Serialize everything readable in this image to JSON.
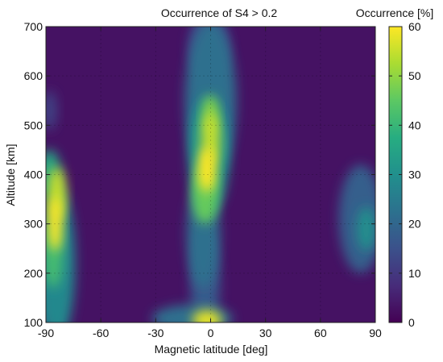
{
  "chart_data": {
    "type": "heatmap",
    "title": "Occurrence of S4 > 0.2",
    "xlabel": "Magnetic latitude [deg]",
    "ylabel": "Altitude [km]",
    "xlim": [
      -90,
      90
    ],
    "ylim": [
      100,
      700
    ],
    "xticks": [
      "-90",
      "-60",
      "-30",
      "0",
      "30",
      "60",
      "90"
    ],
    "yticks": [
      "100",
      "200",
      "300",
      "400",
      "500",
      "600",
      "700"
    ],
    "colorbar": {
      "label": "Occurrence [%]",
      "range": [
        0,
        60
      ],
      "ticks": [
        "0",
        "10",
        "20",
        "30",
        "40",
        "50",
        "60"
      ],
      "colormap": "viridis"
    },
    "grid": true,
    "features": [
      {
        "lat": -85,
        "alt": 300,
        "width_deg": 4,
        "height_km": 55,
        "value": 60
      },
      {
        "lat": -84,
        "alt": 360,
        "width_deg": 5,
        "height_km": 55,
        "value": 55
      },
      {
        "lat": -86,
        "alt": 240,
        "width_deg": 5,
        "height_km": 70,
        "value": 42
      },
      {
        "lat": -88,
        "alt": 400,
        "width_deg": 6,
        "height_km": 50,
        "value": 36
      },
      {
        "lat": -84,
        "alt": 220,
        "width_deg": 10,
        "height_km": 160,
        "value": 28
      },
      {
        "lat": -88,
        "alt": 160,
        "width_deg": 6,
        "height_km": 70,
        "value": 22
      },
      {
        "lat": -88,
        "alt": 530,
        "width_deg": 4,
        "height_km": 40,
        "value": 12
      },
      {
        "lat": -2,
        "alt": 410,
        "width_deg": 5,
        "height_km": 45,
        "value": 60
      },
      {
        "lat": 0,
        "alt": 470,
        "width_deg": 5,
        "height_km": 55,
        "value": 55
      },
      {
        "lat": 0,
        "alt": 520,
        "width_deg": 4,
        "height_km": 40,
        "value": 50
      },
      {
        "lat": -3,
        "alt": 360,
        "width_deg": 7,
        "height_km": 60,
        "value": 46
      },
      {
        "lat": -1,
        "alt": 440,
        "width_deg": 11,
        "height_km": 120,
        "value": 32
      },
      {
        "lat": 0,
        "alt": 550,
        "width_deg": 14,
        "height_km": 160,
        "value": 22
      },
      {
        "lat": -4,
        "alt": 280,
        "width_deg": 9,
        "height_km": 110,
        "value": 22
      },
      {
        "lat": -3,
        "alt": 180,
        "width_deg": 8,
        "height_km": 110,
        "value": 17
      },
      {
        "lat": -1,
        "alt": 660,
        "width_deg": 11,
        "height_km": 70,
        "value": 14
      },
      {
        "lat": -2,
        "alt": 105,
        "width_deg": 8,
        "height_km": 20,
        "value": 58
      },
      {
        "lat": -10,
        "alt": 108,
        "width_deg": 22,
        "height_km": 28,
        "value": 22
      },
      {
        "lat": 85,
        "alt": 290,
        "width_deg": 5,
        "height_km": 45,
        "value": 30
      },
      {
        "lat": 82,
        "alt": 310,
        "width_deg": 12,
        "height_km": 110,
        "value": 18
      }
    ]
  }
}
